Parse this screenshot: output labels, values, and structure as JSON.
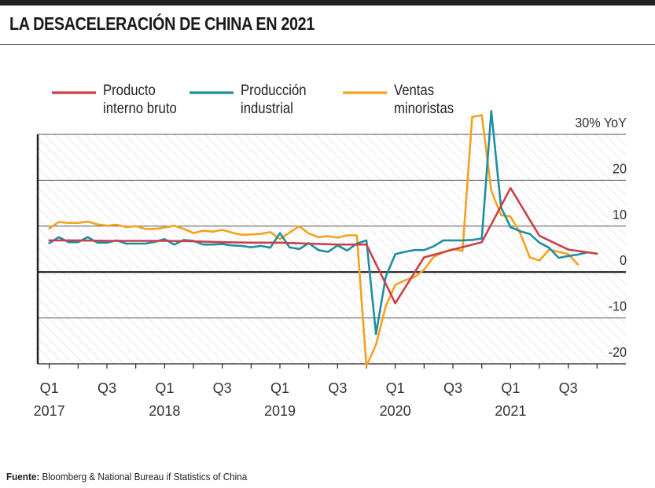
{
  "title": "LA DESACELERACIÓN DE CHINA EN 2021",
  "source": {
    "label": "Fuente:",
    "text": " Bloomberg & National Bureau if Statistics of China"
  },
  "chart_data": {
    "type": "line",
    "y_unit_label": "30% YoY",
    "ylim": [
      -20,
      30
    ],
    "yticks": [
      {
        "value": 30,
        "label": "30% YoY"
      },
      {
        "value": 20,
        "label": "20"
      },
      {
        "value": 10,
        "label": "10"
      },
      {
        "value": 0,
        "label": "0"
      },
      {
        "value": -10,
        "label": "-10"
      },
      {
        "value": -20,
        "label": "-20"
      }
    ],
    "xticks": [
      {
        "label": "Q1",
        "year": "2017"
      },
      {
        "label": "Q3",
        "year": ""
      },
      {
        "label": "Q1",
        "year": "2018"
      },
      {
        "label": "Q3",
        "year": ""
      },
      {
        "label": "Q1",
        "year": "2019"
      },
      {
        "label": "Q3",
        "year": ""
      },
      {
        "label": "Q1",
        "year": "2020"
      },
      {
        "label": "Q3",
        "year": ""
      },
      {
        "label": "Q1",
        "year": "2021"
      },
      {
        "label": "Q3",
        "year": ""
      }
    ],
    "grid": true,
    "legend_position": "top",
    "series": [
      {
        "name": "Producto\ninterno bruto",
        "color": "#c8414b",
        "points": [
          [
            2017.0,
            6.9
          ],
          [
            2017.25,
            6.9
          ],
          [
            2017.5,
            6.8
          ],
          [
            2017.75,
            6.8
          ],
          [
            2018.0,
            6.8
          ],
          [
            2018.25,
            6.7
          ],
          [
            2018.5,
            6.5
          ],
          [
            2018.75,
            6.4
          ],
          [
            2019.0,
            6.4
          ],
          [
            2019.25,
            6.2
          ],
          [
            2019.5,
            6.0
          ],
          [
            2019.75,
            6.0
          ],
          [
            2020.0,
            -6.8
          ],
          [
            2020.25,
            3.2
          ],
          [
            2020.5,
            4.9
          ],
          [
            2020.75,
            6.5
          ],
          [
            2021.0,
            18.3
          ],
          [
            2021.25,
            7.9
          ],
          [
            2021.5,
            4.9
          ],
          [
            2021.75,
            4.0
          ]
        ]
      },
      {
        "name": "Producción\nindustrial",
        "color": "#1f8fa0",
        "points": [
          [
            2017.0,
            6.3
          ],
          [
            2017.083,
            7.6
          ],
          [
            2017.167,
            6.5
          ],
          [
            2017.25,
            6.5
          ],
          [
            2017.333,
            7.6
          ],
          [
            2017.417,
            6.4
          ],
          [
            2017.5,
            6.4
          ],
          [
            2017.583,
            6.9
          ],
          [
            2017.667,
            6.2
          ],
          [
            2017.75,
            6.2
          ],
          [
            2017.833,
            6.2
          ],
          [
            2017.917,
            6.6
          ],
          [
            2018.0,
            7.2
          ],
          [
            2018.083,
            6.0
          ],
          [
            2018.167,
            7.0
          ],
          [
            2018.25,
            6.8
          ],
          [
            2018.333,
            6.0
          ],
          [
            2018.417,
            6.0
          ],
          [
            2018.5,
            6.1
          ],
          [
            2018.583,
            5.8
          ],
          [
            2018.667,
            5.7
          ],
          [
            2018.75,
            5.4
          ],
          [
            2018.833,
            5.7
          ],
          [
            2018.917,
            5.3
          ],
          [
            2019.0,
            8.5
          ],
          [
            2019.083,
            5.4
          ],
          [
            2019.167,
            5.0
          ],
          [
            2019.25,
            6.3
          ],
          [
            2019.333,
            4.8
          ],
          [
            2019.417,
            4.4
          ],
          [
            2019.5,
            5.8
          ],
          [
            2019.583,
            4.7
          ],
          [
            2019.667,
            6.2
          ],
          [
            2019.75,
            6.9
          ],
          [
            2019.833,
            -13.5
          ],
          [
            2019.917,
            -1.1
          ],
          [
            2020.0,
            3.9
          ],
          [
            2020.083,
            4.4
          ],
          [
            2020.167,
            4.8
          ],
          [
            2020.25,
            4.8
          ],
          [
            2020.333,
            5.6
          ],
          [
            2020.417,
            6.9
          ],
          [
            2020.5,
            6.9
          ],
          [
            2020.583,
            6.9
          ],
          [
            2020.667,
            7.0
          ],
          [
            2020.75,
            7.3
          ],
          [
            2020.833,
            35.1
          ],
          [
            2020.917,
            14.1
          ],
          [
            2021.0,
            9.8
          ],
          [
            2021.083,
            8.9
          ],
          [
            2021.167,
            8.3
          ],
          [
            2021.25,
            6.4
          ],
          [
            2021.333,
            5.3
          ],
          [
            2021.417,
            3.1
          ],
          [
            2021.5,
            3.5
          ],
          [
            2021.583,
            3.8
          ],
          [
            2021.667,
            4.3
          ]
        ]
      },
      {
        "name": "Ventas\nminoristas",
        "color": "#f3a21f",
        "points": [
          [
            2017.0,
            9.5
          ],
          [
            2017.083,
            10.9
          ],
          [
            2017.167,
            10.7
          ],
          [
            2017.25,
            10.7
          ],
          [
            2017.333,
            11.0
          ],
          [
            2017.417,
            10.4
          ],
          [
            2017.5,
            10.1
          ],
          [
            2017.583,
            10.3
          ],
          [
            2017.667,
            9.8
          ],
          [
            2017.75,
            10.0
          ],
          [
            2017.833,
            9.4
          ],
          [
            2017.917,
            9.4
          ],
          [
            2018.0,
            9.7
          ],
          [
            2018.083,
            10.1
          ],
          [
            2018.167,
            9.4
          ],
          [
            2018.25,
            8.5
          ],
          [
            2018.333,
            9.0
          ],
          [
            2018.417,
            8.8
          ],
          [
            2018.5,
            9.2
          ],
          [
            2018.583,
            8.6
          ],
          [
            2018.667,
            8.1
          ],
          [
            2018.75,
            8.2
          ],
          [
            2018.833,
            8.3
          ],
          [
            2018.917,
            8.7
          ],
          [
            2019.0,
            7.2
          ],
          [
            2019.083,
            8.6
          ],
          [
            2019.167,
            10.0
          ],
          [
            2019.25,
            8.4
          ],
          [
            2019.333,
            7.6
          ],
          [
            2019.417,
            7.8
          ],
          [
            2019.5,
            7.5
          ],
          [
            2019.583,
            8.0
          ],
          [
            2019.667,
            8.0
          ],
          [
            2019.75,
            -20.5
          ],
          [
            2019.833,
            -15.8
          ],
          [
            2019.917,
            -7.5
          ],
          [
            2020.0,
            -2.8
          ],
          [
            2020.083,
            -1.8
          ],
          [
            2020.167,
            -1.1
          ],
          [
            2020.25,
            0.5
          ],
          [
            2020.333,
            3.3
          ],
          [
            2020.417,
            4.3
          ],
          [
            2020.5,
            5.0
          ],
          [
            2020.583,
            4.6
          ],
          [
            2020.667,
            33.8
          ],
          [
            2020.75,
            34.2
          ],
          [
            2020.833,
            17.7
          ],
          [
            2020.917,
            12.4
          ],
          [
            2021.0,
            12.1
          ],
          [
            2021.083,
            8.5
          ],
          [
            2021.167,
            3.2
          ],
          [
            2021.25,
            2.5
          ],
          [
            2021.333,
            4.9
          ],
          [
            2021.417,
            4.4
          ],
          [
            2021.5,
            3.9
          ],
          [
            2021.583,
            1.7
          ]
        ]
      }
    ]
  }
}
